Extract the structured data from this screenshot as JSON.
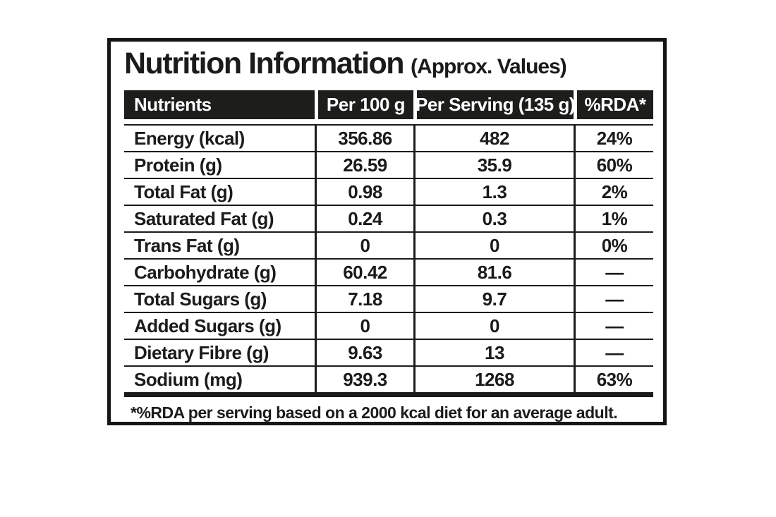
{
  "title": {
    "main": "Nutrition Information",
    "suffix": "(Approx. Values)"
  },
  "table": {
    "headers": [
      "Nutrients",
      "Per 100 g",
      "Per Serving (135 g)",
      "%RDA*"
    ],
    "rows": [
      {
        "nutrient": "Energy (kcal)",
        "per_100g": "356.86",
        "per_serving": "482",
        "rda": "24%"
      },
      {
        "nutrient": "Protein (g)",
        "per_100g": "26.59",
        "per_serving": "35.9",
        "rda": "60%"
      },
      {
        "nutrient": "Total Fat (g)",
        "per_100g": "0.98",
        "per_serving": "1.3",
        "rda": "2%"
      },
      {
        "nutrient": "Saturated Fat (g)",
        "per_100g": "0.24",
        "per_serving": "0.3",
        "rda": "1%"
      },
      {
        "nutrient": "Trans Fat (g)",
        "per_100g": "0",
        "per_serving": "0",
        "rda": "0%"
      },
      {
        "nutrient": "Carbohydrate (g)",
        "per_100g": "60.42",
        "per_serving": "81.6",
        "rda": "—"
      },
      {
        "nutrient": "Total Sugars (g)",
        "per_100g": "7.18",
        "per_serving": "9.7",
        "rda": "—"
      },
      {
        "nutrient": "Added Sugars (g)",
        "per_100g": "0",
        "per_serving": "0",
        "rda": "—"
      },
      {
        "nutrient": "Dietary Fibre (g)",
        "per_100g": "9.63",
        "per_serving": "13",
        "rda": "—"
      },
      {
        "nutrient": "Sodium (mg)",
        "per_100g": "939.3",
        "per_serving": "1268",
        "rda": "63%"
      }
    ]
  },
  "footnote": "*%RDA per serving based on a 2000 kcal diet for an average adult.",
  "colors": {
    "ink": "#1b1b1b",
    "header_background": "#1d1d1b",
    "header_text": "#ffffff",
    "background": "#ffffff"
  }
}
